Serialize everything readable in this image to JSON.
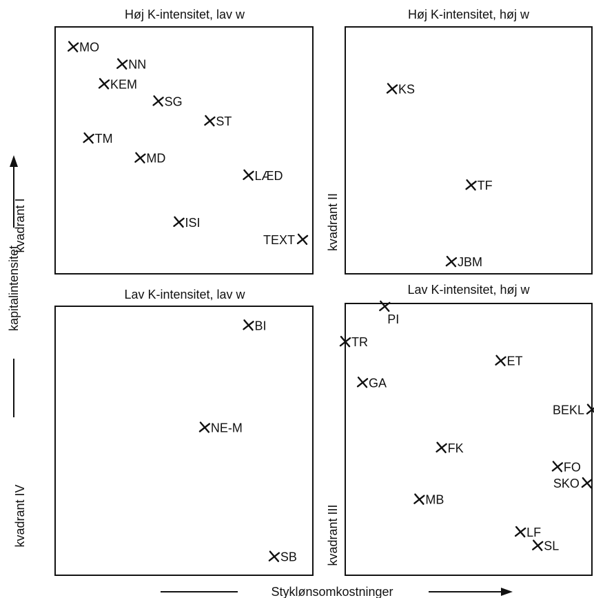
{
  "chart_data": {
    "type": "scatter",
    "x_axis_title": "Styklønsomkostninger",
    "y_axis_title": "kapitalintensitet",
    "quadrants": [
      {
        "id": "q1",
        "title": "Høj K-intensitet, lav w",
        "label": "kvadrant I",
        "points": [
          {
            "name": "MO",
            "x": 0.07,
            "y": 0.92
          },
          {
            "name": "NN",
            "x": 0.26,
            "y": 0.85
          },
          {
            "name": "KEM",
            "x": 0.19,
            "y": 0.77
          },
          {
            "name": "SG",
            "x": 0.4,
            "y": 0.7
          },
          {
            "name": "ST",
            "x": 0.6,
            "y": 0.62
          },
          {
            "name": "TM",
            "x": 0.13,
            "y": 0.55
          },
          {
            "name": "MD",
            "x": 0.33,
            "y": 0.47
          },
          {
            "name": "LÆD",
            "x": 0.75,
            "y": 0.4
          },
          {
            "name": "ISI",
            "x": 0.48,
            "y": 0.21
          },
          {
            "name": "TEXT",
            "x": 0.96,
            "y": 0.14,
            "label_side": "left"
          }
        ]
      },
      {
        "id": "q2",
        "title": "Høj K-intensitet, høj w",
        "label": "kvadrant II",
        "points": [
          {
            "name": "KS",
            "x": 0.19,
            "y": 0.75
          },
          {
            "name": "TF",
            "x": 0.51,
            "y": 0.36
          },
          {
            "name": "JBM",
            "x": 0.43,
            "y": 0.05
          }
        ]
      },
      {
        "id": "q3",
        "title": "Lav K-intensitet, høj w",
        "label": "kvadrant III",
        "points": [
          {
            "name": "PI",
            "x": 0.16,
            "y": 0.99,
            "label_side": "below"
          },
          {
            "name": "TR",
            "x": 0.0,
            "y": 0.86
          },
          {
            "name": "ET",
            "x": 0.63,
            "y": 0.79
          },
          {
            "name": "GA",
            "x": 0.07,
            "y": 0.71
          },
          {
            "name": "BEKL",
            "x": 1.0,
            "y": 0.61,
            "label_side": "left"
          },
          {
            "name": "FK",
            "x": 0.39,
            "y": 0.47
          },
          {
            "name": "FO",
            "x": 0.86,
            "y": 0.4
          },
          {
            "name": "SKO",
            "x": 0.98,
            "y": 0.34,
            "label_side": "left"
          },
          {
            "name": "MB",
            "x": 0.3,
            "y": 0.28
          },
          {
            "name": "LF",
            "x": 0.71,
            "y": 0.16
          },
          {
            "name": "SL",
            "x": 0.78,
            "y": 0.11
          }
        ]
      },
      {
        "id": "q4",
        "title": "Lav K-intensitet, lav w",
        "label": "kvadrant IV",
        "points": [
          {
            "name": "BI",
            "x": 0.75,
            "y": 0.93
          },
          {
            "name": "NE-M",
            "x": 0.58,
            "y": 0.55
          },
          {
            "name": "SB",
            "x": 0.85,
            "y": 0.07
          }
        ]
      }
    ]
  }
}
